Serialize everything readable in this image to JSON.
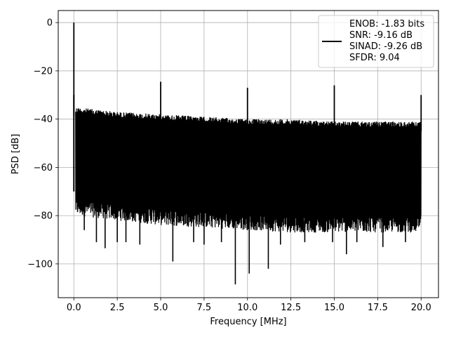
{
  "chart_data": {
    "type": "line",
    "xlabel": "Frequency [MHz]",
    "ylabel": "PSD [dB]",
    "xlim": [
      -0.9,
      21.0
    ],
    "ylim": [
      -114,
      5
    ],
    "xticks": [
      0.0,
      2.5,
      5.0,
      7.5,
      10.0,
      12.5,
      15.0,
      17.5,
      20.0
    ],
    "xtick_labels": [
      "0.0",
      "2.5",
      "5.0",
      "7.5",
      "10.0",
      "12.5",
      "15.0",
      "17.5",
      "20.0"
    ],
    "yticks": [
      0,
      -20,
      -40,
      -60,
      -80,
      -100
    ],
    "ytick_labels": [
      "0",
      "−20",
      "−40",
      "−60",
      "−80",
      "−100"
    ],
    "grid": true,
    "legend_position": "top-right",
    "series": [
      {
        "color": "#000000",
        "noise_floor": {
          "x": [
            0.1,
            2.5,
            5.0,
            7.5,
            10.0,
            12.5,
            15.0,
            17.5,
            20.0
          ],
          "upper": [
            -35,
            -37,
            -38,
            -39,
            -40,
            -40,
            -41,
            -41,
            -41
          ],
          "lower": [
            -80,
            -82,
            -84,
            -85,
            -86,
            -87,
            -87,
            -87,
            -87
          ]
        },
        "spurs": [
          {
            "x": 0.0,
            "y": 0.0
          },
          {
            "x": 5.0,
            "y": -24.5
          },
          {
            "x": 10.0,
            "y": -27.0
          },
          {
            "x": 15.0,
            "y": -26.0
          },
          {
            "x": 20.0,
            "y": -30.0
          }
        ],
        "deep_dips": [
          {
            "x": 0.6,
            "y": -86
          },
          {
            "x": 1.3,
            "y": -91
          },
          {
            "x": 1.8,
            "y": -93.5
          },
          {
            "x": 2.5,
            "y": -91
          },
          {
            "x": 3.0,
            "y": -91
          },
          {
            "x": 3.8,
            "y": -92
          },
          {
            "x": 5.7,
            "y": -99
          },
          {
            "x": 6.9,
            "y": -91
          },
          {
            "x": 7.5,
            "y": -92
          },
          {
            "x": 8.5,
            "y": -91
          },
          {
            "x": 9.3,
            "y": -108.5
          },
          {
            "x": 10.1,
            "y": -104
          },
          {
            "x": 11.2,
            "y": -102
          },
          {
            "x": 11.9,
            "y": -92
          },
          {
            "x": 13.3,
            "y": -91
          },
          {
            "x": 14.9,
            "y": -91
          },
          {
            "x": 15.7,
            "y": -96
          },
          {
            "x": 16.3,
            "y": -91
          },
          {
            "x": 17.8,
            "y": -93
          },
          {
            "x": 19.1,
            "y": -91
          }
        ]
      }
    ]
  },
  "legend": {
    "lines": [
      "ENOB: -1.83 bits",
      "SNR: -9.16 dB",
      "SINAD: -9.26 dB",
      "SFDR: 9.04"
    ]
  }
}
